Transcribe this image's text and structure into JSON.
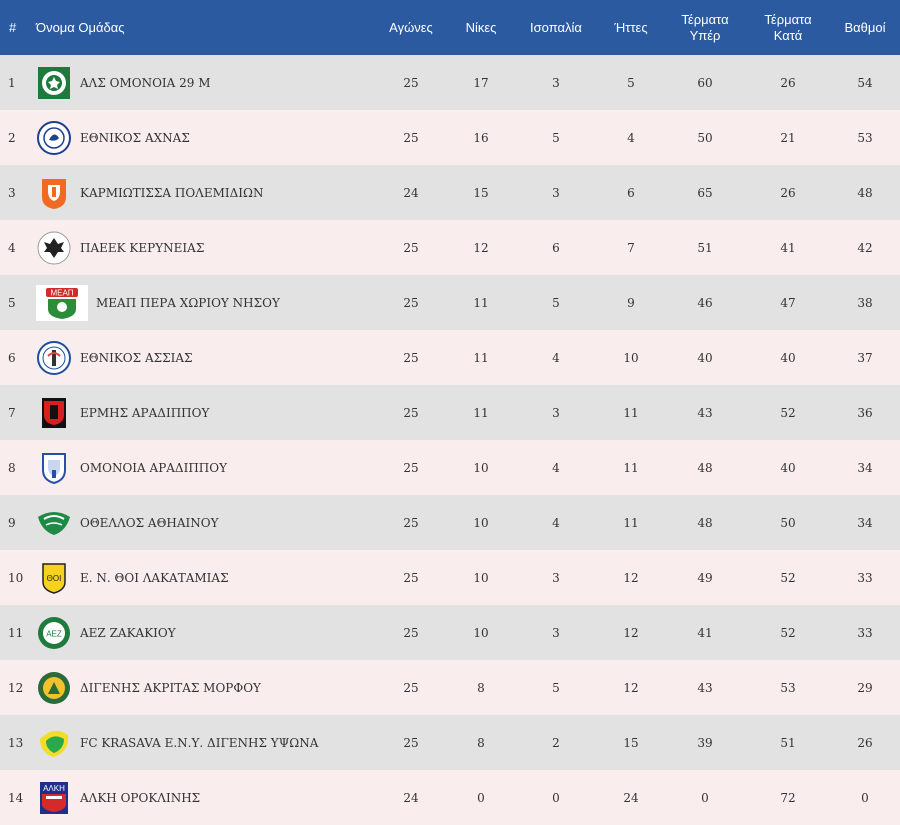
{
  "headers": {
    "pos": "#",
    "team": "Όνομα Ομάδας",
    "played": "Αγώνες",
    "wins": "Νίκες",
    "draws": "Ισοπαλία",
    "losses": "Ήττες",
    "goals_for_1": "Τέρματα",
    "goals_for_2": "Υπέρ",
    "goals_against_1": "Τέρματα",
    "goals_against_2": "Κατά",
    "points": "Βαθμοί"
  },
  "colors": {
    "header": "#2b5aa0",
    "row_odd": "#e2e2e2",
    "row_even": "#f9eded"
  },
  "rows": [
    {
      "pos": "1",
      "team": "ΑΛΣ ΟΜΟΝΟΙΑ 29 Μ",
      "played": "25",
      "wins": "17",
      "draws": "3",
      "losses": "5",
      "gf": "60",
      "ga": "26",
      "pts": "54",
      "logo": "omonoia-29m-crest-icon"
    },
    {
      "pos": "2",
      "team": "ΕΘΝΙΚΟΣ ΑΧΝΑΣ",
      "played": "25",
      "wins": "16",
      "draws": "5",
      "losses": "4",
      "gf": "50",
      "ga": "21",
      "pts": "53",
      "logo": "ethnikos-achnas-crest-icon"
    },
    {
      "pos": "3",
      "team": "ΚΑΡΜΙΩΤΙΣΣΑ ΠΟΛΕΜΙΔΙΩΝ",
      "played": "24",
      "wins": "15",
      "draws": "3",
      "losses": "6",
      "gf": "65",
      "ga": "26",
      "pts": "48",
      "logo": "karmiotissa-crest-icon"
    },
    {
      "pos": "4",
      "team": "ΠΑΕΕΚ ΚΕΡΥΝΕΙΑΣ",
      "played": "25",
      "wins": "12",
      "draws": "6",
      "losses": "7",
      "gf": "51",
      "ga": "41",
      "pts": "42",
      "logo": "paeek-crest-icon"
    },
    {
      "pos": "5",
      "team": "ΜΕΑΠ ΠΕΡΑ ΧΩΡΙΟΥ ΝΗΣΟΥ",
      "played": "25",
      "wins": "11",
      "draws": "5",
      "losses": "9",
      "gf": "46",
      "ga": "47",
      "pts": "38",
      "logo": "meap-crest-icon",
      "logo_text": "ΜΕΑΠ"
    },
    {
      "pos": "6",
      "team": "ΕΘΝΙΚΟΣ ΑΣΣΙΑΣ",
      "played": "25",
      "wins": "11",
      "draws": "4",
      "losses": "10",
      "gf": "40",
      "ga": "40",
      "pts": "37",
      "logo": "ethnikos-assias-crest-icon"
    },
    {
      "pos": "7",
      "team": "ΕΡΜΗΣ ΑΡΑΔΙΠΠΟΥ",
      "played": "25",
      "wins": "11",
      "draws": "3",
      "losses": "11",
      "gf": "43",
      "ga": "52",
      "pts": "36",
      "logo": "ermis-crest-icon"
    },
    {
      "pos": "8",
      "team": "ΟΜΟΝΟΙΑ ΑΡΑΔΙΠΠΟΥ",
      "played": "25",
      "wins": "10",
      "draws": "4",
      "losses": "11",
      "gf": "48",
      "ga": "40",
      "pts": "34",
      "logo": "omonoia-aradippou-crest-icon"
    },
    {
      "pos": "9",
      "team": "ΟΘΕΛΛΟΣ ΑΘΗΑΙΝΟΥ",
      "played": "25",
      "wins": "10",
      "draws": "4",
      "losses": "11",
      "gf": "48",
      "ga": "50",
      "pts": "34",
      "logo": "othellos-crest-icon"
    },
    {
      "pos": "10",
      "team": "Ε. Ν. ΘΟΙ ΛΑΚΑΤΑΜΙΑΣ",
      "played": "25",
      "wins": "10",
      "draws": "3",
      "losses": "12",
      "gf": "49",
      "ga": "52",
      "pts": "33",
      "logo": "thoi-crest-icon",
      "logo_text": "ΘΟΙ"
    },
    {
      "pos": "11",
      "team": "ΑΕΖ ΖΑΚΑΚΙΟΥ",
      "played": "25",
      "wins": "10",
      "draws": "3",
      "losses": "12",
      "gf": "41",
      "ga": "52",
      "pts": "33",
      "logo": "aez-crest-icon",
      "logo_text": "ΑΕΖ"
    },
    {
      "pos": "12",
      "team": "ΔΙΓΕΝΗΣ ΑΚΡΙΤΑΣ ΜΟΡΦΟΥ",
      "played": "25",
      "wins": "8",
      "draws": "5",
      "losses": "12",
      "gf": "43",
      "ga": "53",
      "pts": "29",
      "logo": "digenis-morfou-crest-icon"
    },
    {
      "pos": "13",
      "team": "FC KRASAVA Ε.Ν.Υ. ΔΙΓΕΝΗΣ ΥΨΩΝΑ",
      "played": "25",
      "wins": "8",
      "draws": "2",
      "losses": "15",
      "gf": "39",
      "ga": "51",
      "pts": "26",
      "logo": "krasava-crest-icon"
    },
    {
      "pos": "14",
      "team": "ΑΛΚΗ ΟΡΟΚΛΙΝΗΣ",
      "played": "24",
      "wins": "0",
      "draws": "0",
      "losses": "24",
      "gf": "0",
      "ga": "72",
      "pts": "0",
      "logo": "alki-crest-icon",
      "logo_text": "ΑΛΚΗ"
    }
  ]
}
